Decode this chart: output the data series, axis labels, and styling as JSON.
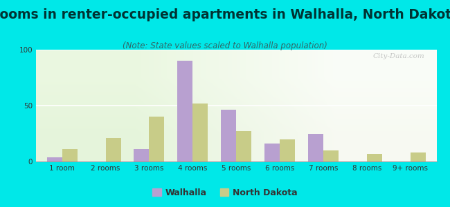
{
  "title": "Rooms in renter-occupied apartments in Walhalla, North Dakota",
  "subtitle": "(Note: State values scaled to Walhalla population)",
  "categories": [
    "1 room",
    "2 rooms",
    "3 rooms",
    "4 rooms",
    "5 rooms",
    "6 rooms",
    "7 rooms",
    "8 rooms",
    "9+ rooms"
  ],
  "walhalla": [
    4,
    0,
    11,
    90,
    46,
    16,
    25,
    0,
    0
  ],
  "north_dakota": [
    11,
    21,
    40,
    52,
    27,
    20,
    10,
    7,
    8
  ],
  "walhalla_color": "#b8a0d0",
  "north_dakota_color": "#c8cc88",
  "background_outer": "#00e8e8",
  "ylim": [
    0,
    100
  ],
  "yticks": [
    0,
    50,
    100
  ],
  "bar_width": 0.35,
  "title_fontsize": 13.5,
  "subtitle_fontsize": 8.5,
  "tick_fontsize": 7.5,
  "legend_fontsize": 9,
  "watermark_text": "City-Data.com"
}
